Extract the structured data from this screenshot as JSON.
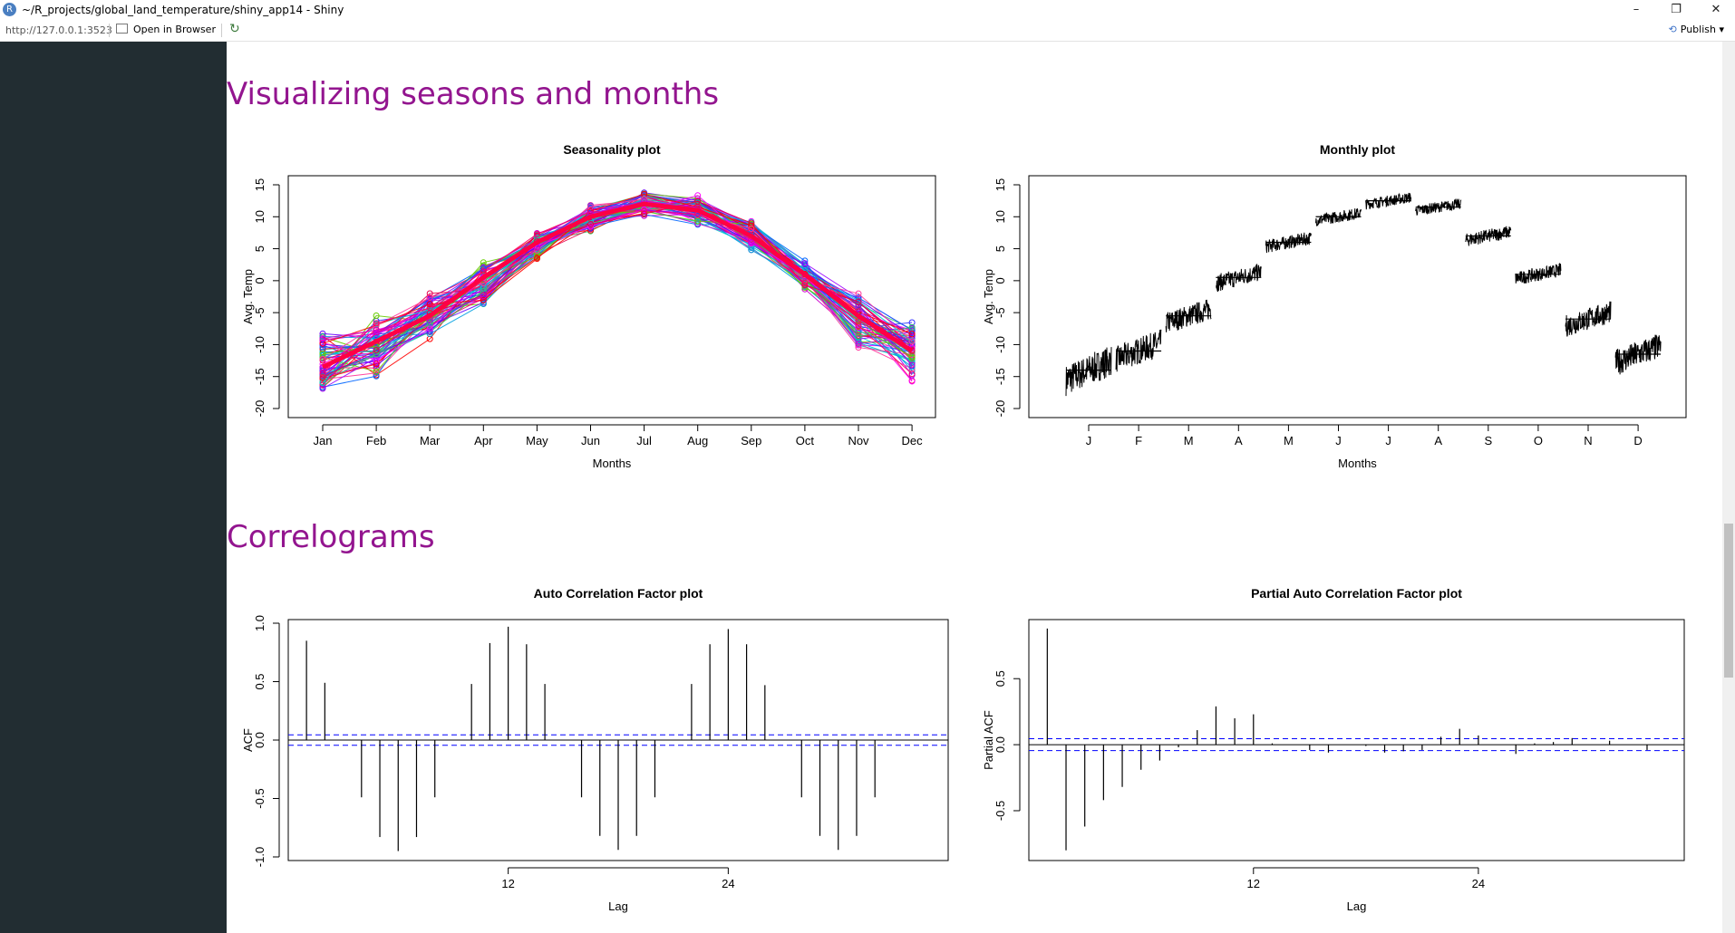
{
  "window": {
    "title": "~/R_projects/global_land_temperature/shiny_app14 - Shiny",
    "url": "http://127.0.0.1:3523",
    "open_in_browser": "Open in Browser",
    "publish": "Publish",
    "minimize_glyph": "–",
    "restore_glyph": "❐",
    "close_glyph": "✕",
    "publish_icon": "⟲",
    "refresh_icon": "↻",
    "app_icon": "R"
  },
  "sections": {
    "seasons_title": "Visualizing seasons and months",
    "correlograms_title": "Correlograms"
  },
  "chart_data": [
    {
      "id": "seasonality",
      "type": "line",
      "title": "Seasonality plot",
      "xlabel": "Months",
      "ylabel": "Avg. Temp",
      "categories": [
        "Jan",
        "Feb",
        "Mar",
        "Apr",
        "May",
        "Jun",
        "Jul",
        "Aug",
        "Sep",
        "Oct",
        "Nov",
        "Dec"
      ],
      "ylim": [
        -20,
        15
      ],
      "yticks": [
        -20,
        -15,
        -10,
        -5,
        0,
        5,
        10,
        15
      ],
      "series_count": 60,
      "mean": [
        -13.5,
        -9.5,
        -5.5,
        0.5,
        6.0,
        10.0,
        12.0,
        11.0,
        7.0,
        1.0,
        -5.5,
        -11.0
      ],
      "min": [
        -18.5,
        -15.5,
        -9.5,
        -4.5,
        3.0,
        7.5,
        9.5,
        8.5,
        4.5,
        -1.5,
        -11.0,
        -16.5
      ],
      "max": [
        -7.0,
        -5.0,
        -1.5,
        3.5,
        8.0,
        12.5,
        14.5,
        13.5,
        10.0,
        3.5,
        -1.5,
        -5.5
      ]
    },
    {
      "id": "monthly",
      "type": "line",
      "title": "Monthly plot",
      "xlabel": "Months",
      "ylabel": "Avg. Temp",
      "categories": [
        "J",
        "F",
        "M",
        "A",
        "M",
        "J",
        "J",
        "A",
        "S",
        "O",
        "N",
        "D"
      ],
      "ylim": [
        -20,
        15
      ],
      "yticks": [
        -20,
        -15,
        -10,
        -5,
        0,
        5,
        10,
        15
      ],
      "means": [
        -14,
        -11,
        -5.5,
        0.5,
        6.0,
        10.0,
        12.5,
        11.5,
        7.0,
        1.0,
        -6.0,
        -11.5
      ],
      "spread": [
        3.5,
        3.0,
        2.5,
        2.0,
        1.5,
        1.3,
        1.2,
        1.2,
        1.5,
        1.5,
        2.5,
        3.0
      ]
    },
    {
      "id": "acf",
      "type": "bar",
      "title": "Auto Correlation Factor plot",
      "xlabel": "Lag",
      "ylabel": "ACF",
      "x": [
        1,
        2,
        3,
        4,
        5,
        6,
        7,
        8,
        9,
        10,
        11,
        12,
        13,
        14,
        15,
        16,
        17,
        18,
        19,
        20,
        21,
        22,
        23,
        24,
        25,
        26,
        27,
        28,
        29,
        30,
        31,
        32,
        33,
        34,
        35
      ],
      "values": [
        0.85,
        0.49,
        0,
        -0.49,
        -0.83,
        -0.95,
        -0.83,
        -0.49,
        0,
        0.48,
        0.83,
        0.97,
        0.82,
        0.48,
        0,
        -0.49,
        -0.82,
        -0.94,
        -0.82,
        -0.49,
        0,
        0.48,
        0.82,
        0.95,
        0.82,
        0.47,
        0,
        -0.49,
        -0.82,
        -0.94,
        -0.82,
        -0.49,
        0,
        0,
        0
      ],
      "ci": 0.045,
      "xticks": [
        12,
        24
      ],
      "ylim": [
        -1.0,
        1.0
      ],
      "yticks": [
        -1.0,
        -0.5,
        0.0,
        0.5,
        1.0
      ]
    },
    {
      "id": "pacf",
      "type": "bar",
      "title": "Partial Auto Correlation Factor plot",
      "xlabel": "Lag",
      "ylabel": "Partial ACF",
      "x": [
        1,
        2,
        3,
        4,
        5,
        6,
        7,
        8,
        9,
        10,
        11,
        12,
        13,
        14,
        15,
        16,
        17,
        18,
        19,
        20,
        21,
        22,
        23,
        24,
        25,
        26,
        27,
        28,
        29,
        30,
        31,
        32,
        33,
        34
      ],
      "values": [
        0.88,
        -0.8,
        -0.62,
        -0.42,
        -0.32,
        -0.19,
        -0.12,
        -0.02,
        0.11,
        0.29,
        0.2,
        0.23,
        0.01,
        0.0,
        -0.04,
        -0.06,
        0.0,
        -0.01,
        -0.06,
        -0.05,
        -0.04,
        0.06,
        0.12,
        0.07,
        0.0,
        -0.07,
        0.01,
        0.02,
        0.05,
        0.0,
        0.03,
        0.0,
        -0.04,
        0.0
      ],
      "ci": 0.045,
      "xticks": [
        12,
        24
      ],
      "ylim": [
        -0.85,
        0.92
      ],
      "yticks": [
        -0.5,
        0.0,
        0.5
      ]
    }
  ]
}
